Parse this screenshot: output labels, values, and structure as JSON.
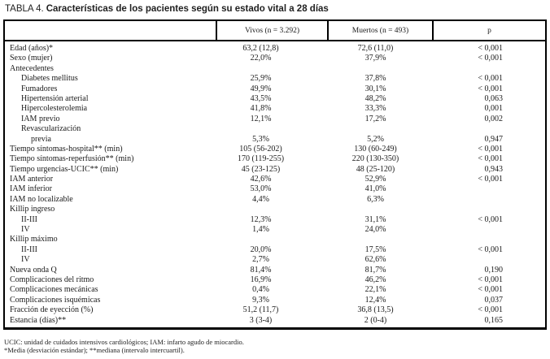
{
  "title": {
    "prefix": "TABLA 4.",
    "text": "Características de los pacientes según su estado vital a 28 días"
  },
  "table": {
    "columns": [
      "",
      "Vivos (n = 3.292)",
      "Muertos (n = 493)",
      "p"
    ],
    "rows": [
      {
        "label": "Edad (años)*",
        "indent": 0,
        "vivos": "63,2 (12,8)",
        "muertos": "72,6 (11,0)",
        "p": "< 0,001"
      },
      {
        "label": "Sexo (mujer)",
        "indent": 0,
        "vivos": "22,0%",
        "muertos": "37,9%",
        "p": "< 0,001"
      },
      {
        "label": "Antecedentes",
        "indent": 0,
        "vivos": "",
        "muertos": "",
        "p": ""
      },
      {
        "label": "Diabetes mellitus",
        "indent": 1,
        "vivos": "25,9%",
        "muertos": "37,8%",
        "p": "< 0,001"
      },
      {
        "label": "Fumadores",
        "indent": 1,
        "vivos": "49,9%",
        "muertos": "30,1%",
        "p": "< 0,001"
      },
      {
        "label": "Hipertensión arterial",
        "indent": 1,
        "vivos": "43,5%",
        "muertos": "48,2%",
        "p": "0,063"
      },
      {
        "label": "Hipercolesterolemia",
        "indent": 1,
        "vivos": "41,8%",
        "muertos": "33,3%",
        "p": "0,001"
      },
      {
        "label": "IAM previo",
        "indent": 1,
        "vivos": "12,1%",
        "muertos": "17,2%",
        "p": "0,002"
      },
      {
        "label": "Revascularización",
        "indent": 1,
        "vivos": "",
        "muertos": "",
        "p": ""
      },
      {
        "label": "previa",
        "indent": 2,
        "vivos": "5,3%",
        "muertos": "5,2%",
        "p": "0,947"
      },
      {
        "label": "Tiempo síntomas-hospital** (min)",
        "indent": 0,
        "vivos": "105 (56-202)",
        "muertos": "130 (60-249)",
        "p": "< 0,001"
      },
      {
        "label": "Tiempo síntomas-reperfusión** (min)",
        "indent": 0,
        "vivos": "170 (119-255)",
        "muertos": "220 (130-350)",
        "p": "< 0,001"
      },
      {
        "label": "Tiempo urgencias-UCIC** (min)",
        "indent": 0,
        "vivos": "45 (23-125)",
        "muertos": "48 (25-120)",
        "p": "0,943"
      },
      {
        "label": "IAM anterior",
        "indent": 0,
        "vivos": "42,6%",
        "muertos": "52,9%",
        "p": "< 0,001"
      },
      {
        "label": "IAM inferior",
        "indent": 0,
        "vivos": "53,0%",
        "muertos": "41,0%",
        "p": ""
      },
      {
        "label": "IAM no localizable",
        "indent": 0,
        "vivos": "4,4%",
        "muertos": "6,3%",
        "p": ""
      },
      {
        "label": "Killip ingreso",
        "indent": 0,
        "vivos": "",
        "muertos": "",
        "p": ""
      },
      {
        "label": "II-III",
        "indent": 1,
        "vivos": "12,3%",
        "muertos": "31,1%",
        "p": "< 0,001"
      },
      {
        "label": "IV",
        "indent": 1,
        "vivos": "1,4%",
        "muertos": "24,0%",
        "p": ""
      },
      {
        "label": "Killip máximo",
        "indent": 0,
        "vivos": "",
        "muertos": "",
        "p": ""
      },
      {
        "label": "II-III",
        "indent": 1,
        "vivos": "20,0%",
        "muertos": "17,5%",
        "p": "< 0,001"
      },
      {
        "label": "IV",
        "indent": 1,
        "vivos": "2,7%",
        "muertos": "62,6%",
        "p": ""
      },
      {
        "label": "Nueva onda Q",
        "indent": 0,
        "vivos": "81,4%",
        "muertos": "81,7%",
        "p": "0,190"
      },
      {
        "label": "Complicaciones del ritmo",
        "indent": 0,
        "vivos": "16,9%",
        "muertos": "46,2%",
        "p": "< 0,001"
      },
      {
        "label": "Complicaciones mecánicas",
        "indent": 0,
        "vivos": "0,4%",
        "muertos": "22,1%",
        "p": "< 0,001"
      },
      {
        "label": "Complicaciones isquémicas",
        "indent": 0,
        "vivos": "9,3%",
        "muertos": "12,4%",
        "p": "0,037"
      },
      {
        "label": "Fracción de eyección (%)",
        "indent": 0,
        "vivos": "51,2 (11,7)",
        "muertos": "36,8 (13,5)",
        "p": "< 0,001"
      },
      {
        "label": "Estancia (días)**",
        "indent": 0,
        "vivos": "3 (3-4)",
        "muertos": "2 (0-4)",
        "p": "0,165"
      }
    ]
  },
  "footnotes": [
    "UCIC: unidad de cuidados intensivos cardiológicos; IAM: infarto agudo de miocardio.",
    "*Media (desviación estándar); **mediana (intervalo intercuartil)."
  ],
  "colors": {
    "background": "#ffffff",
    "text": "#1a1a1a",
    "border": "#000000"
  }
}
